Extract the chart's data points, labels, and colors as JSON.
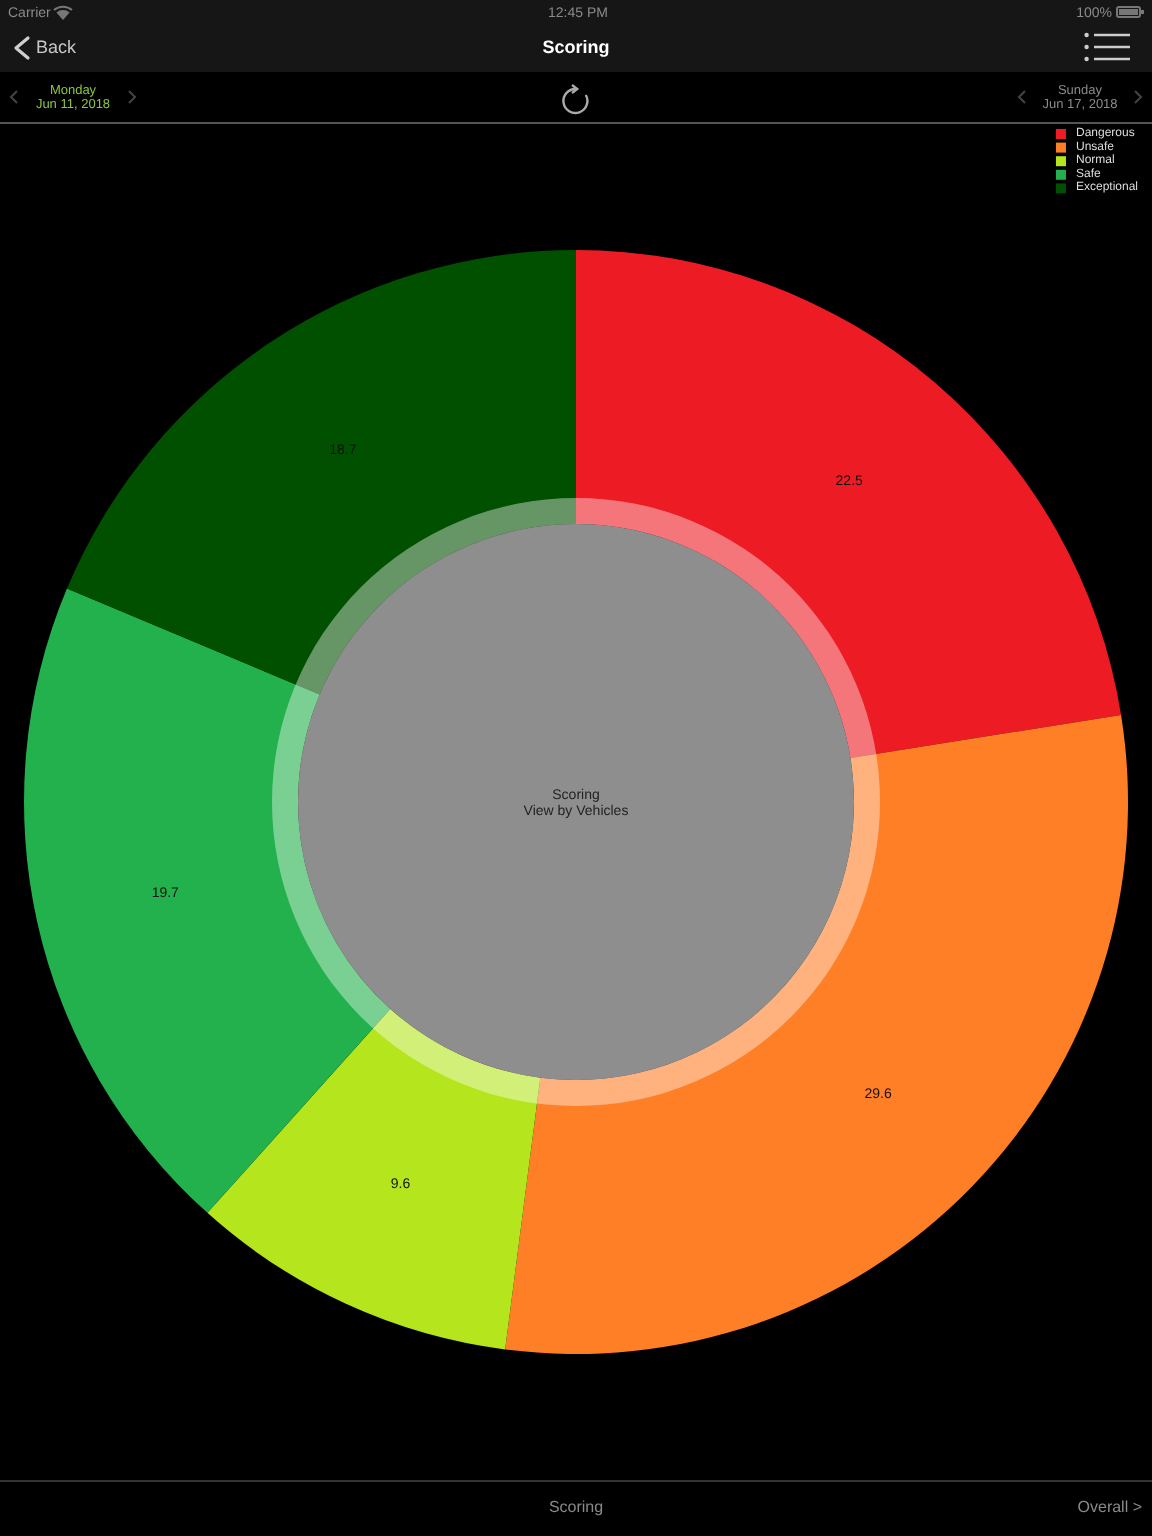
{
  "chart_data": {
    "type": "donut",
    "title": "Scoring",
    "categories": [
      "Dangerous",
      "Unsafe",
      "Normal",
      "Safe",
      "Exceptional"
    ],
    "values": [
      22.5,
      29.6,
      9.6,
      19.7,
      18.7
    ],
    "colors": [
      "#ed1c24",
      "#ff7f27",
      "#b5e61d",
      "#22b14c",
      "#005000"
    ],
    "data_labels": true,
    "legend": "top right",
    "annotations": [
      "Carrier",
      "12:45 PM",
      "100%",
      "Back",
      "Monday",
      "Jun 11, 2018",
      "Sunday",
      "Jun 17, 2018",
      "Scoring",
      "View by Vehicles",
      "Scoring",
      "Overall >"
    ]
  }
}
